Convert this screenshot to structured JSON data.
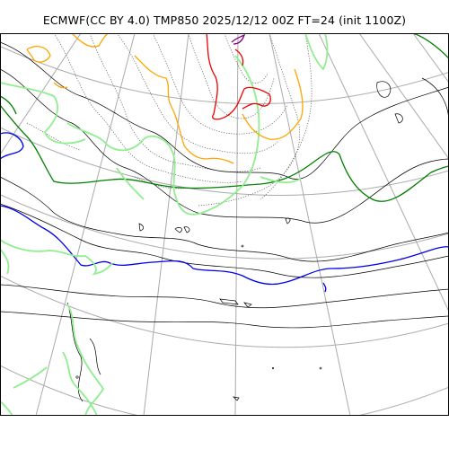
{
  "title": "ECMWF(CC BY 4.0) TMP850 2025/12/12 00Z FT=24 (init 1100Z)",
  "map": {
    "colors": {
      "graticule": "#aaaaaa",
      "coastline": "#000000",
      "isotherm_dotted": "#555555",
      "contour_blue": "#0000ee",
      "contour_green": "#008000",
      "contour_lightgreen": "#90ee90",
      "contour_orange": "#ffa500",
      "contour_red": "#ee0000",
      "contour_purple": "#800080"
    }
  }
}
